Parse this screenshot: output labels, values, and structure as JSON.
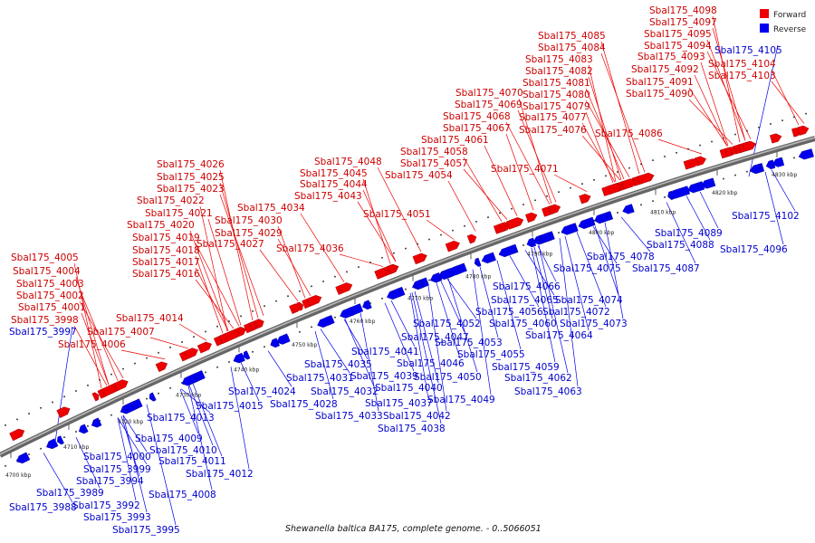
{
  "caption": {
    "organism": "Shewanella baltica BA175, complete genome.",
    "range": " - 0..5066051"
  },
  "legend": {
    "forward": {
      "label": "Forward",
      "color": "#ee0000"
    },
    "reverse": {
      "label": "Reverse",
      "color": "#0000ee"
    }
  },
  "ticks": [
    "4700 kbp",
    "4710 kbp",
    "4720 kbp",
    "4730 kbp",
    "4740 kbp",
    "4750 kbp",
    "4760 kbp",
    "4770 kbp",
    "4780 kbp",
    "4790 kbp",
    "4800 kbp",
    "4810 kbp",
    "4820 kbp",
    "4830 kbp"
  ],
  "forward_labels": [
    "Sbal175_4005",
    "Sbal175_4004",
    "Sbal175_4003",
    "Sbal175_4002",
    "Sbal175_4001",
    "Sbal175_3998",
    "Sbal175_4007",
    "Sbal175_4006",
    "Sbal175_4014",
    "Sbal175_4026",
    "Sbal175_4025",
    "Sbal175_4023",
    "Sbal175_4022",
    "Sbal175_4021",
    "Sbal175_4020",
    "Sbal175_4019",
    "Sbal175_4018",
    "Sbal175_4017",
    "Sbal175_4016",
    "Sbal175_4034",
    "Sbal175_4030",
    "Sbal175_4029",
    "Sbal175_4027",
    "Sbal175_4048",
    "Sbal175_4045",
    "Sbal175_4044",
    "Sbal175_4043",
    "Sbal175_4036",
    "Sbal175_4051",
    "Sbal175_4070",
    "Sbal175_4069",
    "Sbal175_4068",
    "Sbal175_4067",
    "Sbal175_4061",
    "Sbal175_4058",
    "Sbal175_4057",
    "Sbal175_4054",
    "Sbal175_4071",
    "Sbal175_4085",
    "Sbal175_4084",
    "Sbal175_4083",
    "Sbal175_4082",
    "Sbal175_4081",
    "Sbal175_4080",
    "Sbal175_4079",
    "Sbal175_4077",
    "Sbal175_4076",
    "Sbal175_4086",
    "Sbal175_4098",
    "Sbal175_4097",
    "Sbal175_4095",
    "Sbal175_4094",
    "Sbal175_4093",
    "Sbal175_4092",
    "Sbal175_4091",
    "Sbal175_4090",
    "Sbal175_4104",
    "Sbal175_4103"
  ],
  "reverse_labels": [
    "Sbal175_3997",
    "Sbal175_3989",
    "Sbal175_3988",
    "Sbal175_3992",
    "Sbal175_3993",
    "Sbal175_3995",
    "Sbal175_3994",
    "Sbal175_4000",
    "Sbal175_3999",
    "Sbal175_4009",
    "Sbal175_4010",
    "Sbal175_4011",
    "Sbal175_4012",
    "Sbal175_4008",
    "Sbal175_4013",
    "Sbal175_4015",
    "Sbal175_4024",
    "Sbal175_4031",
    "Sbal175_4028",
    "Sbal175_4035",
    "Sbal175_4032",
    "Sbal175_4033",
    "Sbal175_4041",
    "Sbal175_4039",
    "Sbal175_4037",
    "Sbal175_4040",
    "Sbal175_4038",
    "Sbal175_4042",
    "Sbal175_4046",
    "Sbal175_4050",
    "Sbal175_4049",
    "Sbal175_4047",
    "Sbal175_4052",
    "Sbal175_4053",
    "Sbal175_4055",
    "Sbal175_4056",
    "Sbal175_4060",
    "Sbal175_4059",
    "Sbal175_4062",
    "Sbal175_4063",
    "Sbal175_4064",
    "Sbal175_4065",
    "Sbal175_4066",
    "Sbal175_4074",
    "Sbal175_4072",
    "Sbal175_4073",
    "Sbal175_4075",
    "Sbal175_4078",
    "Sbal175_4089",
    "Sbal175_4088",
    "Sbal175_4087",
    "Sbal175_4096",
    "Sbal175_4102",
    "Sbal175_4105"
  ]
}
